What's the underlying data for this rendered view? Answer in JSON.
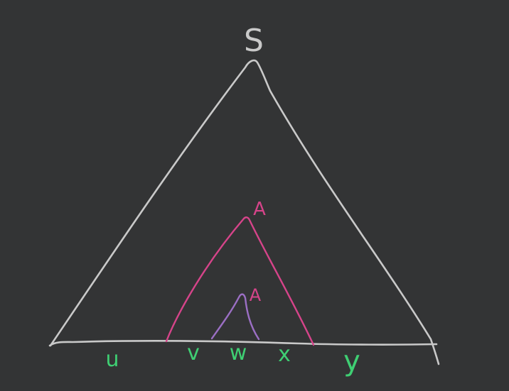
{
  "diagram": {
    "root_label": "S",
    "inner_label": "A",
    "nested_label": "A",
    "segments": [
      "u",
      "v",
      "w",
      "x",
      "y"
    ]
  },
  "colors": {
    "background": "#333435",
    "outer_triangle": "#c9c9c9",
    "inner_triangle": "#d6448a",
    "nested_triangle": "#9b6fc4",
    "segment_labels": "#3fcf73"
  }
}
